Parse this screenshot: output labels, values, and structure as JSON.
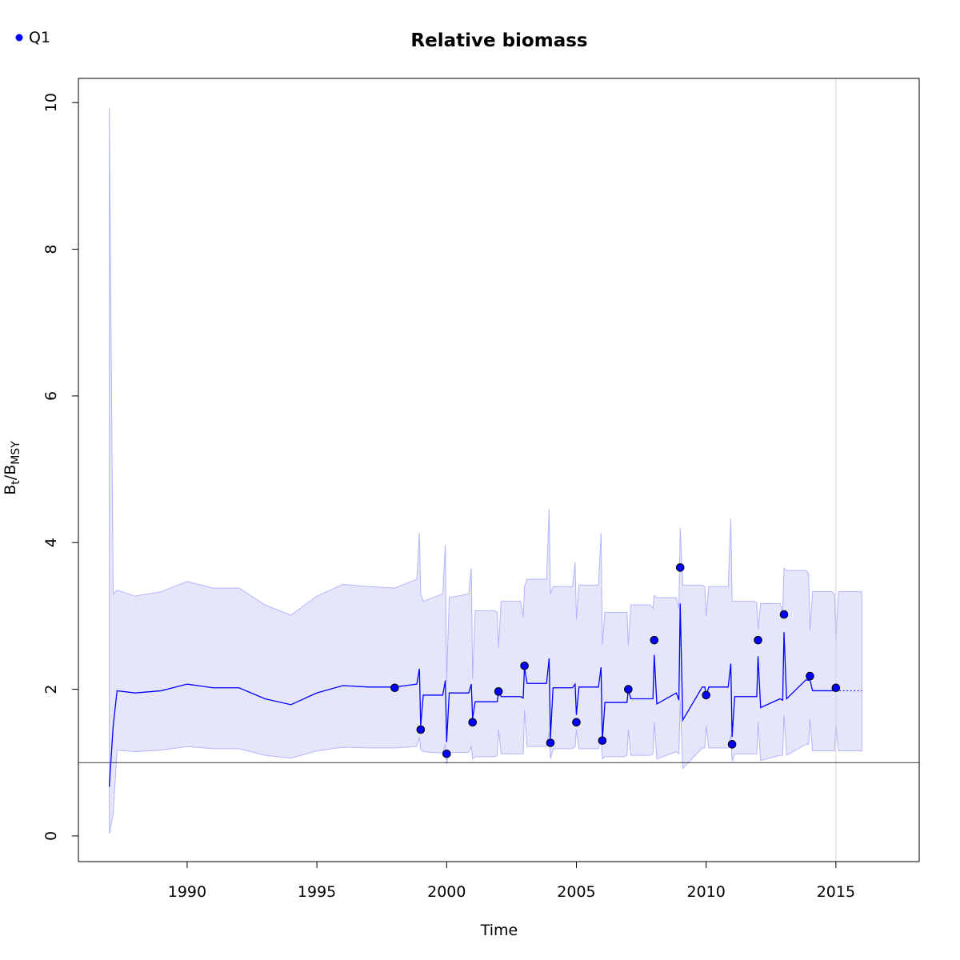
{
  "chart_data": {
    "type": "line",
    "title": "Relative biomass",
    "x_label": "Time",
    "y_label": [
      "B",
      "t",
      "/B",
      "MSY"
    ],
    "xlim": [
      1985.81,
      2018.21
    ],
    "ylim": [
      -0.35,
      10.33
    ],
    "xticks": [
      1990,
      1995,
      2000,
      2005,
      2010,
      2015
    ],
    "yticks": [
      0,
      2,
      4,
      6,
      8,
      10
    ],
    "hline": 1,
    "vline": 2015,
    "line_color": "#0000ff",
    "band_color": "#e6e6fa",
    "band_edge_color": "#b4b4ff",
    "x": [
      1987,
      1987.15,
      1987.3,
      1988,
      1989,
      1990,
      1991,
      1992,
      1993,
      1994,
      1995,
      1996,
      1997,
      1998,
      1998.85,
      1998.95,
      1999,
      1999.1,
      1999.85,
      1999.95,
      2000,
      2000.1,
      2000.85,
      2000.95,
      2001,
      2001.1,
      2001.85,
      2001.95,
      2002,
      2002.1,
      2002.85,
      2002.95,
      2003,
      2003.1,
      2003.85,
      2003.95,
      2004,
      2004.1,
      2004.85,
      2004.95,
      2005,
      2005.1,
      2005.85,
      2005.95,
      2006,
      2006.1,
      2006.85,
      2006.95,
      2007,
      2007.1,
      2007.85,
      2007.95,
      2008,
      2008.1,
      2008.85,
      2008.95,
      2009,
      2009.1,
      2009.85,
      2009.95,
      2010,
      2010.1,
      2010.85,
      2010.95,
      2011,
      2011.1,
      2011.85,
      2011.95,
      2012,
      2012.1,
      2012.85,
      2012.95,
      2013,
      2013.1,
      2013.85,
      2013.95,
      2014,
      2014.1,
      2014.85,
      2014.95,
      2015,
      2015.1,
      2016
    ],
    "estimate": [
      0.67,
      1.5,
      1.98,
      1.95,
      1.98,
      2.07,
      2.02,
      2.02,
      1.87,
      1.79,
      1.95,
      2.05,
      2.03,
      2.03,
      2.07,
      2.28,
      1.5,
      1.92,
      1.92,
      2.12,
      1.28,
      1.95,
      1.95,
      2.07,
      1.6,
      1.83,
      1.83,
      1.83,
      1.97,
      1.9,
      1.9,
      1.88,
      2.3,
      2.08,
      2.08,
      2.42,
      1.33,
      2.02,
      2.02,
      2.07,
      1.65,
      2.03,
      2.03,
      2.3,
      1.3,
      1.82,
      1.82,
      1.82,
      2.0,
      1.87,
      1.87,
      1.87,
      2.47,
      1.8,
      1.95,
      1.85,
      3.17,
      1.58,
      2.03,
      2.03,
      1.9,
      2.03,
      2.03,
      2.35,
      1.35,
      1.9,
      1.9,
      1.9,
      2.45,
      1.75,
      1.87,
      1.85,
      2.78,
      1.87,
      2.13,
      2.12,
      2.13,
      1.98,
      1.98,
      1.98,
      1.98,
      1.98,
      1.98
    ],
    "lower": [
      0.03,
      0.3,
      1.17,
      1.15,
      1.17,
      1.22,
      1.19,
      1.19,
      1.1,
      1.06,
      1.16,
      1.21,
      1.2,
      1.2,
      1.22,
      1.35,
      1.18,
      1.15,
      1.13,
      1.25,
      0.98,
      1.14,
      1.14,
      1.22,
      1.05,
      1.08,
      1.08,
      1.1,
      1.45,
      1.12,
      1.12,
      1.12,
      1.72,
      1.22,
      1.22,
      1.42,
      1.05,
      1.19,
      1.19,
      1.22,
      1.45,
      1.19,
      1.19,
      1.35,
      1.05,
      1.08,
      1.08,
      1.1,
      1.45,
      1.1,
      1.1,
      1.12,
      1.55,
      1.05,
      1.15,
      1.12,
      1.85,
      0.92,
      1.2,
      1.2,
      1.5,
      1.2,
      1.2,
      1.38,
      1.02,
      1.12,
      1.12,
      1.12,
      1.55,
      1.03,
      1.1,
      1.1,
      1.65,
      1.1,
      1.25,
      1.25,
      1.6,
      1.16,
      1.16,
      1.16,
      1.52,
      1.16,
      1.16
    ],
    "upper": [
      9.93,
      3.3,
      3.35,
      3.27,
      3.33,
      3.47,
      3.38,
      3.38,
      3.15,
      3.01,
      3.27,
      3.43,
      3.4,
      3.38,
      3.5,
      4.13,
      3.3,
      3.2,
      3.3,
      3.97,
      2.1,
      3.25,
      3.3,
      3.65,
      2.15,
      3.07,
      3.07,
      3.05,
      2.57,
      3.2,
      3.2,
      2.98,
      3.4,
      3.5,
      3.5,
      4.45,
      3.3,
      3.4,
      3.4,
      3.73,
      2.95,
      3.42,
      3.42,
      4.13,
      2.6,
      3.05,
      3.05,
      3.05,
      2.6,
      3.15,
      3.15,
      3.1,
      3.28,
      3.25,
      3.25,
      3.1,
      4.2,
      3.42,
      3.42,
      3.4,
      3.0,
      3.4,
      3.4,
      4.33,
      3.2,
      3.2,
      3.2,
      3.18,
      2.82,
      3.17,
      3.17,
      3.05,
      3.65,
      3.62,
      3.62,
      3.58,
      2.8,
      3.33,
      3.33,
      3.3,
      2.63,
      3.33,
      3.33
    ],
    "observations": {
      "name": "Q1",
      "color": "#0000ff",
      "x": [
        1998,
        1999,
        2000,
        2001,
        2002,
        2003,
        2004,
        2005,
        2006,
        2007,
        2008,
        2009,
        2010,
        2011,
        2012,
        2013,
        2014,
        2015
      ],
      "values": [
        2.02,
        1.45,
        1.12,
        1.55,
        1.97,
        2.32,
        1.27,
        1.55,
        1.3,
        2.0,
        2.67,
        3.66,
        1.92,
        1.25,
        2.67,
        3.02,
        2.18,
        2.02
      ]
    }
  }
}
